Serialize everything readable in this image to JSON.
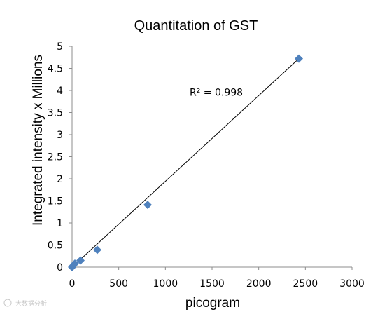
{
  "chart_data": {
    "type": "scatter",
    "title": "Quantitation of GST",
    "xlabel": "picogram",
    "ylabel": "Integrated intensity x Millions",
    "xlim": [
      0,
      3000
    ],
    "ylim": [
      0,
      5
    ],
    "x_ticks": [
      0,
      500,
      1000,
      1500,
      2000,
      2500,
      3000
    ],
    "y_ticks": [
      0,
      0.5,
      1,
      1.5,
      2,
      2.5,
      3,
      3.5,
      4,
      4.5,
      5
    ],
    "x_tick_labels": [
      "0",
      "500",
      "1000",
      "1500",
      "2000",
      "2500",
      "3000"
    ],
    "y_tick_labels": [
      "0",
      "0.5",
      "1",
      "1.5",
      "2",
      "2.5",
      "3",
      "3.5",
      "4",
      "4.5",
      "5"
    ],
    "grid": false,
    "legend": "none",
    "marker": "diamond",
    "series": [
      {
        "points": [
          {
            "x": 0,
            "y": 0.0
          },
          {
            "x": 10,
            "y": 0.03
          },
          {
            "x": 30,
            "y": 0.08
          },
          {
            "x": 90,
            "y": 0.15
          },
          {
            "x": 270,
            "y": 0.39
          },
          {
            "x": 810,
            "y": 1.41
          },
          {
            "x": 2430,
            "y": 4.72
          }
        ],
        "color": "#4f81bd"
      }
    ],
    "trendline": {
      "type": "linear",
      "from": {
        "x": 0,
        "y": 0.0
      },
      "to": {
        "x": 2430,
        "y": 4.72
      },
      "color": "#000000"
    },
    "annotations": [
      {
        "text": "R² = 0.998",
        "x": 1260,
        "y": 3.88
      }
    ]
  },
  "watermark": {
    "text": "大数据分析"
  }
}
